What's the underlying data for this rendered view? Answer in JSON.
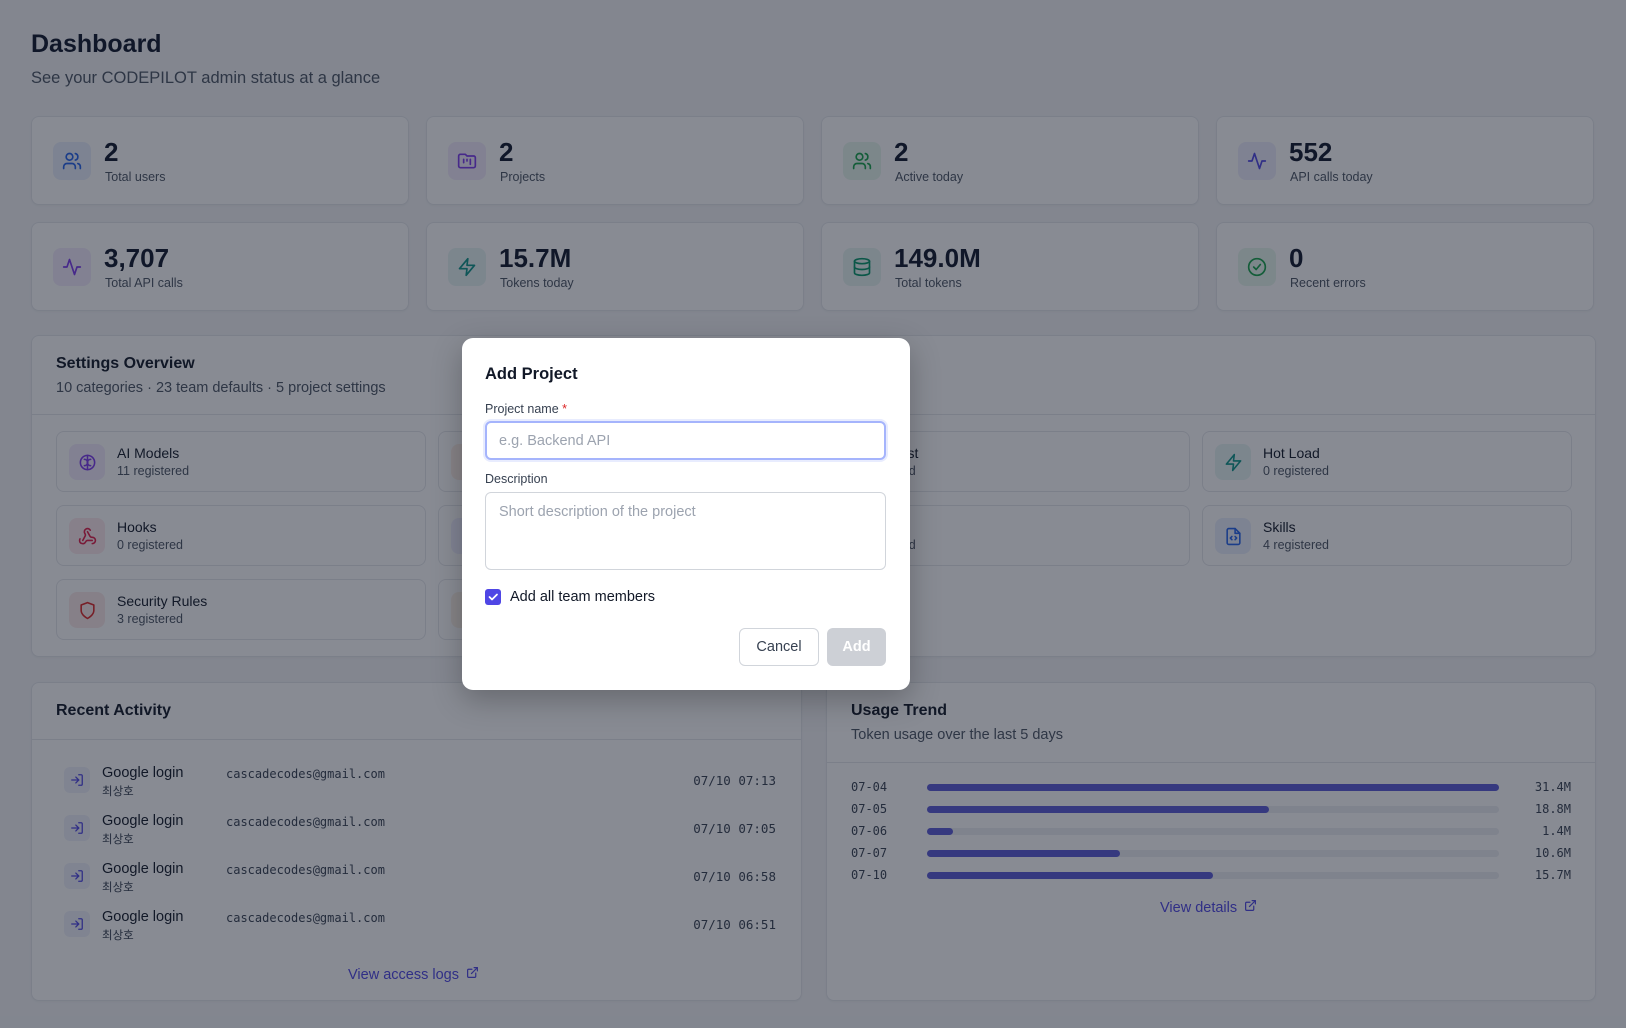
{
  "header": {
    "title": "Dashboard",
    "subtitle": "See your CODEPILOT admin status at a glance"
  },
  "stats": [
    {
      "value": "2",
      "label": "Total users",
      "icon": "users-icon",
      "color": "#2563eb"
    },
    {
      "value": "2",
      "label": "Projects",
      "icon": "folder-icon",
      "color": "#7c3aed"
    },
    {
      "value": "2",
      "label": "Active today",
      "icon": "users-icon",
      "color": "#16a34a"
    },
    {
      "value": "552",
      "label": "API calls today",
      "icon": "activity-icon",
      "color": "#4f46e5"
    },
    {
      "value": "3,707",
      "label": "Total API calls",
      "icon": "activity-icon",
      "color": "#7c3aed"
    },
    {
      "value": "15.7M",
      "label": "Tokens today",
      "icon": "zap-icon",
      "color": "#0d9488"
    },
    {
      "value": "149.0M",
      "label": "Total tokens",
      "icon": "database-icon",
      "color": "#059669"
    },
    {
      "value": "0",
      "label": "Recent errors",
      "icon": "check-circle-icon",
      "color": "#16a34a"
    }
  ],
  "settings_overview": {
    "title": "Settings Overview",
    "subtitle": "10 categories · 23 team defaults · 5 project settings",
    "items": [
      {
        "name": "AI Models",
        "count": "11 registered",
        "icon": "brain-icon",
        "color": "#7c3aed"
      },
      {
        "name": "",
        "count": "",
        "icon": "partial-icon",
        "color": "#ea580c"
      },
      {
        "name": "d/Test",
        "count": "stered",
        "icon": "partial-icon",
        "color": "#16a34a"
      },
      {
        "name": "Hot Load",
        "count": "0 registered",
        "icon": "zap-icon",
        "color": "#0d9488"
      },
      {
        "name": "Hooks",
        "count": "0 registered",
        "icon": "webhook-icon",
        "color": "#e11d48"
      },
      {
        "name": "",
        "count": "",
        "icon": "partial-icon",
        "color": "#6366f1"
      },
      {
        "name": "",
        "count": "stered",
        "icon": "partial-icon",
        "color": "#4f46e5"
      },
      {
        "name": "Skills",
        "count": "4 registered",
        "icon": "file-code-icon",
        "color": "#2563eb"
      },
      {
        "name": "Security Rules",
        "count": "3 registered",
        "icon": "shield-icon",
        "color": "#dc2626"
      },
      {
        "name": "",
        "count": "",
        "icon": "partial-icon",
        "color": "#d97706"
      }
    ]
  },
  "recent_activity": {
    "title": "Recent Activity",
    "items": [
      {
        "title": "Google login",
        "email": "cascadecodes@gmail.com",
        "user": "최상호",
        "time": "07/10 07:13"
      },
      {
        "title": "Google login",
        "email": "cascadecodes@gmail.com",
        "user": "최상호",
        "time": "07/10 07:05"
      },
      {
        "title": "Google login",
        "email": "cascadecodes@gmail.com",
        "user": "최상호",
        "time": "07/10 06:58"
      },
      {
        "title": "Google login",
        "email": "cascadecodes@gmail.com",
        "user": "최상호",
        "time": "07/10 06:51"
      }
    ],
    "link_label": "View access logs"
  },
  "usage_trend": {
    "title": "Usage Trend",
    "subtitle": "Token usage over the last 5 days",
    "link_label": "View details",
    "bar_color": "#5b5bd6"
  },
  "chart_data": {
    "type": "bar",
    "categories": [
      "07-04",
      "07-05",
      "07-06",
      "07-07",
      "07-10"
    ],
    "values": [
      31.4,
      18.8,
      1.4,
      10.6,
      15.7
    ],
    "value_labels": [
      "31.4M",
      "18.8M",
      "1.4M",
      "10.6M",
      "15.7M"
    ],
    "xlim": [
      0,
      31.4
    ]
  },
  "modal": {
    "title": "Add Project",
    "name_label": "Project name",
    "required_mark": "*",
    "name_placeholder": "e.g. Backend API",
    "name_value": "",
    "description_label": "Description",
    "description_placeholder": "Short description of the project",
    "description_value": "",
    "add_team_label": "Add all team members",
    "add_team_checked": true,
    "cancel_label": "Cancel",
    "add_label": "Add",
    "accent_color": "#4f46e5"
  }
}
